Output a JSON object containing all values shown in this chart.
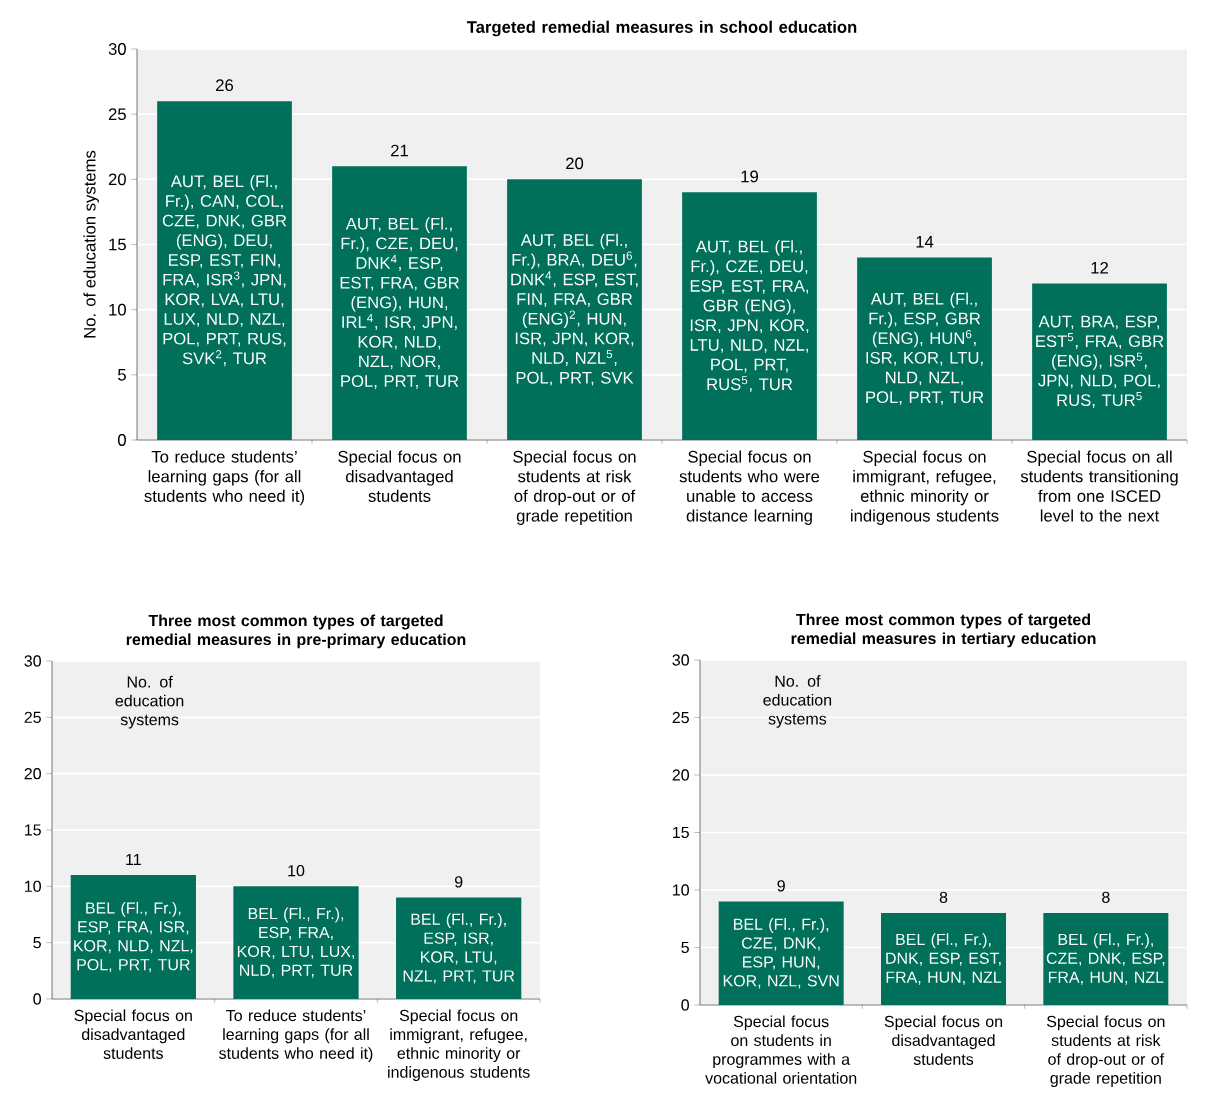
{
  "chart_data": [
    {
      "type": "bar",
      "title": "Targeted remedial measures in school education",
      "ylabel": "No. of education systems",
      "categories": [
        "To reduce students’ learning gaps (for all students who need it)",
        "Special focus on disadvantaged students",
        "Special focus on students at risk of drop-out or of grade repetition",
        "Special focus on students who were unable to access distance learning",
        "Special focus on immigrant, refugee, ethnic minority or indigenous students",
        "Special focus on all students transitioning from one ISCED level to the next"
      ],
      "values": [
        26,
        21,
        20,
        19,
        14,
        12
      ],
      "color": "#00705a",
      "data_labels": true,
      "grid": "y",
      "ylim": [
        0,
        30
      ],
      "yticks": [
        0,
        5,
        10,
        15,
        20,
        25,
        30
      ],
      "annotations": [
        "AUT, BEL (Fl., Fr.), CAN, COL, CZE, DNK, GBR (ENG), DEU, ESP, EST, FIN, FRA, ISR$^{3}$, JPN, KOR, LVA, LTU, LUX, NLD, NZL, POL, PRT, RUS, SVK$^{2}$, TUR",
        "AUT, BEL (Fl., Fr.), CZE, DEU, DNK$^{4}$, ESP, EST, FRA, GBR (ENG), HUN, IRL$^{4}$, ISR, JPN, KOR, NLD, NZL, NOR, POL, PRT, TUR",
        "AUT, BEL (Fl., Fr.), BRA, DEU$^{6}$, DNK$^{4}$, ESP, EST, FIN, FRA, GBR (ENG)$^{2}$, HUN, ISR, JPN, KOR, NLD, NZL$^{5}$, POL, PRT, SVK",
        "AUT, BEL (Fl., Fr.), CZE, DEU, ESP, EST, FRA, GBR (ENG), ISR, JPN, KOR, LTU, NLD, NZL, POL, PRT, RUS$^{5}$, TUR",
        "AUT, BEL (Fl., Fr.), ESP, GBR (ENG), HUN$^{6}$, ISR, KOR, LTU, NLD, NZL, POL, PRT, TUR",
        "AUT, BRA, ESP, EST$^{5}$, FRA, GBR (ENG), ISR$^{5}$, JPN, NLD, POL, RUS, TUR$^{5}$"
      ]
    },
    {
      "type": "bar",
      "title": "Three most common types of targeted remedial measures in pre-primary education",
      "ylabel": "No. of education systems",
      "categories": [
        "Special focus on disadvantaged students",
        "To reduce students’ learning gaps (for all students who need it)",
        "Special focus on immigrant, refugee, ethnic minority or indigenous students"
      ],
      "values": [
        11,
        10,
        9
      ],
      "color": "#00705a",
      "data_labels": true,
      "grid": "y",
      "ylim": [
        0,
        30
      ],
      "yticks": [
        0,
        5,
        10,
        15,
        20,
        25,
        30
      ],
      "annotations": [
        "BEL (Fl., Fr.), ESP, FRA, ISR, KOR, NLD, NZL, POL, PRT, TUR",
        "BEL (Fl., Fr.), ESP, FRA, KOR, LTU, LUX, NLD, PRT, TUR",
        "BEL (Fl., Fr.), ESP, ISR, KOR, LTU, NZL, PRT, TUR"
      ]
    },
    {
      "type": "bar",
      "title": "Three most common types of targeted remedial measures in tertiary education",
      "ylabel": "No. of education systems",
      "categories": [
        "Special focus on students in programmes with a vocational orientation",
        "Special focus on disadvantaged students",
        "Special focus on students at risk of drop-out or of grade repetition"
      ],
      "values": [
        9,
        8,
        8
      ],
      "color": "#00705a",
      "data_labels": true,
      "grid": "y",
      "ylim": [
        0,
        30
      ],
      "yticks": [
        0,
        5,
        10,
        15,
        20,
        25,
        30
      ],
      "annotations": [
        "BEL (Fl., Fr.), CZE, DNK, ESP, HUN, KOR, NZL, SVN",
        "BEL (Fl., Fr.), DNK, ESP, EST, FRA, HUN, NZL",
        "BEL (Fl., Fr.), CZE, DNK, ESP, FRA, HUN, NZL"
      ]
    }
  ]
}
